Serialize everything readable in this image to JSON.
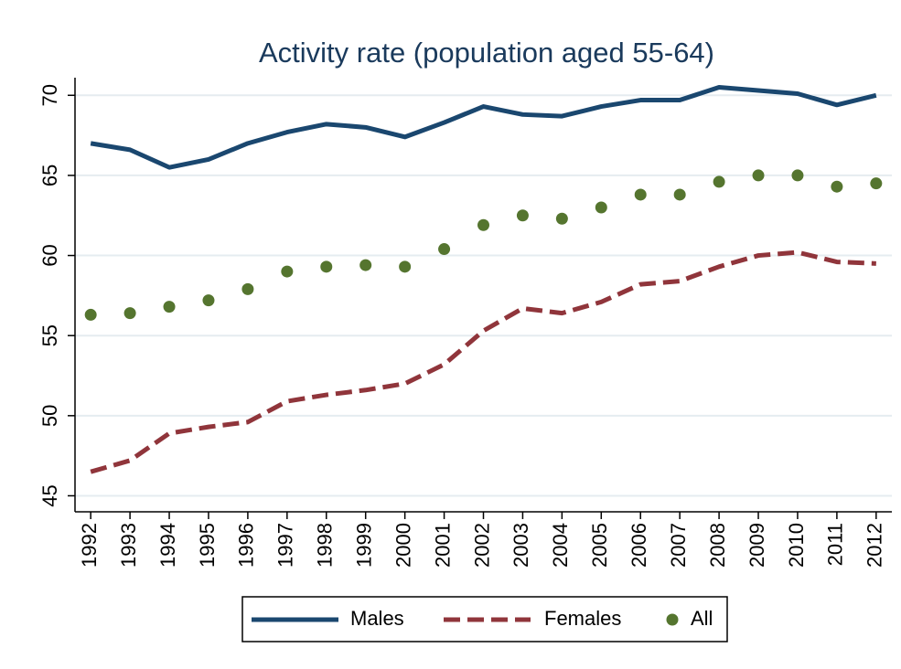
{
  "chart_data": {
    "type": "line",
    "title": "Activity rate (population aged 55-64)",
    "x": [
      1992,
      1993,
      1994,
      1995,
      1996,
      1997,
      1998,
      1999,
      2000,
      2001,
      2002,
      2003,
      2004,
      2005,
      2006,
      2007,
      2008,
      2009,
      2010,
      2011,
      2012
    ],
    "xlim": [
      1991.6,
      2012.4
    ],
    "xticks": [
      1992,
      1993,
      1994,
      1995,
      1996,
      1997,
      1998,
      1999,
      2000,
      2001,
      2002,
      2003,
      2004,
      2005,
      2006,
      2007,
      2008,
      2009,
      2010,
      2011,
      2012
    ],
    "ylim": [
      44,
      71.1
    ],
    "yticks": [
      45,
      50,
      55,
      60,
      65,
      70
    ],
    "grid": true,
    "legend": "bottom",
    "series": [
      {
        "name": "Males",
        "color": "#1a476f",
        "style": "solid",
        "values": [
          67.0,
          66.6,
          65.5,
          66.0,
          67.0,
          67.7,
          68.2,
          68.0,
          67.4,
          68.3,
          69.3,
          68.8,
          68.7,
          69.3,
          69.7,
          69.7,
          70.5,
          70.3,
          70.1,
          69.4,
          70.0
        ]
      },
      {
        "name": "Females",
        "color": "#90353b",
        "style": "dashed",
        "values": [
          46.5,
          47.2,
          48.9,
          49.3,
          49.6,
          50.9,
          51.3,
          51.6,
          52.0,
          53.2,
          55.3,
          56.7,
          56.4,
          57.1,
          58.2,
          58.4,
          59.3,
          60.0,
          60.2,
          59.6,
          59.5
        ]
      },
      {
        "name": "All",
        "color": "#55752f",
        "style": "markers",
        "values": [
          56.3,
          56.4,
          56.8,
          57.2,
          57.9,
          59.0,
          59.3,
          59.4,
          59.3,
          60.4,
          61.9,
          62.5,
          62.3,
          63.0,
          63.8,
          63.8,
          64.6,
          65.0,
          65.0,
          64.3,
          64.5
        ]
      }
    ]
  }
}
